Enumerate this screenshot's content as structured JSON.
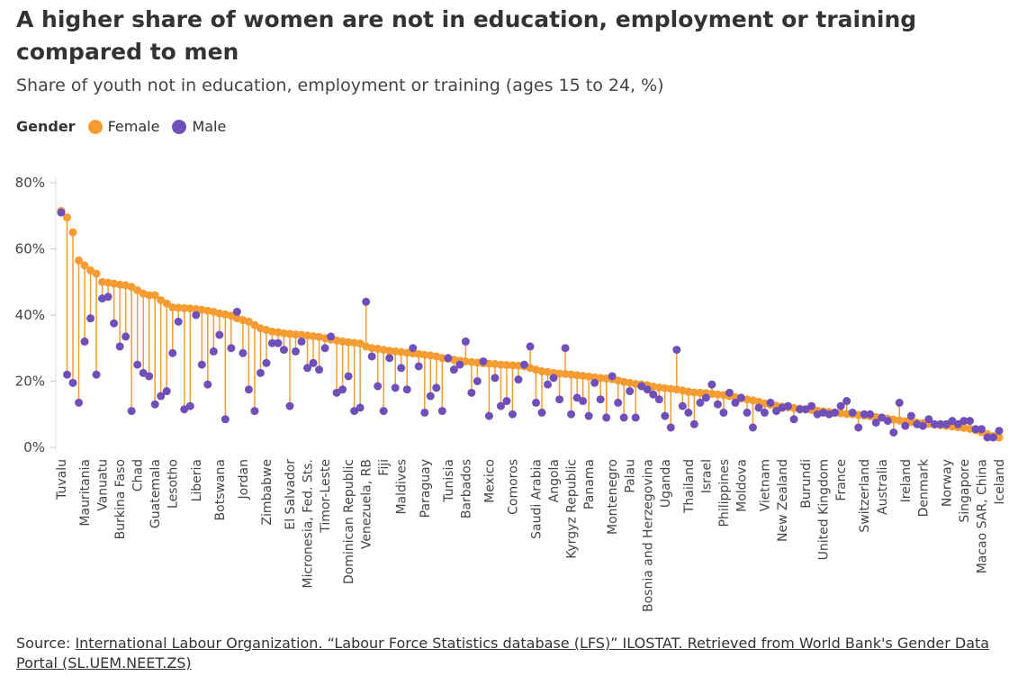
{
  "chart_data": {
    "type": "dumbbell",
    "title": "A higher share of women are not in education, employment or training compared to men",
    "subtitle": "Share of youth not in education, employment or training (ages 15 to 24, %)",
    "legend_title": "Gender",
    "source_label": "Source:",
    "source_text": "International Labour Organization. “Labour Force Statistics database (LFS)” ILOSTAT. Retrieved from World Bank's Gender Data Portal (SL.UEM.NEET.ZS)",
    "categories": [
      "Tuvalu",
      null,
      null,
      null,
      "Mauritania",
      null,
      null,
      "Vanuatu",
      null,
      null,
      "Burkina Faso",
      null,
      null,
      "Chad",
      null,
      null,
      "Guatemala",
      null,
      null,
      "Lesotho",
      null,
      null,
      null,
      "Liberia",
      null,
      null,
      null,
      "Botswana",
      null,
      null,
      null,
      "Jordan",
      null,
      null,
      null,
      "Zimbabwe",
      null,
      null,
      null,
      "El Salvador",
      null,
      null,
      "Micronesia, Fed. Sts.",
      null,
      null,
      "Timor-Leste",
      null,
      null,
      null,
      "Dominican Republic",
      null,
      null,
      "Venezuela, RB",
      null,
      null,
      "Fiji",
      null,
      null,
      "Maldives",
      null,
      null,
      null,
      "Paraguay",
      null,
      null,
      null,
      "Tunisia",
      null,
      null,
      "Barbados",
      null,
      null,
      null,
      "Mexico",
      null,
      null,
      null,
      "Comoros",
      null,
      null,
      null,
      "Saudi Arabia",
      null,
      null,
      "Angola",
      null,
      null,
      "Kyrgyz Republic",
      null,
      null,
      "Panama",
      null,
      null,
      null,
      "Montenegro",
      null,
      null,
      "Palau",
      null,
      null,
      "Bosnia and Herzegovina",
      null,
      null,
      "Uganda",
      null,
      null,
      null,
      "Thailand",
      null,
      null,
      "Israel",
      null,
      null,
      "Philippines",
      null,
      null,
      "Moldova",
      null,
      null,
      null,
      "Vietnam",
      null,
      null,
      "New Zealand",
      null,
      null,
      null,
      "Burundi",
      null,
      null,
      "United Kingdom",
      null,
      null,
      "France",
      null,
      null,
      null,
      "Switzerland",
      null,
      null,
      "Australia",
      null,
      null,
      null,
      "Ireland",
      null,
      null,
      "Denmark",
      null,
      null,
      null,
      "Norway",
      null,
      null,
      "Singapore",
      null,
      null,
      "Macao SAR, China",
      null,
      null,
      "Iceland"
    ],
    "series": [
      {
        "name": "Female",
        "color": "#f59d32",
        "values": [
          71.5,
          69.5,
          65,
          56.5,
          55,
          53.5,
          52.5,
          50,
          49.8,
          49.5,
          49.2,
          49,
          48.5,
          47.5,
          46.5,
          46,
          46,
          44.5,
          43.5,
          42.3,
          42.2,
          42.1,
          42,
          41.8,
          41.6,
          41.3,
          41,
          40.5,
          40.2,
          39.8,
          39,
          38.5,
          38,
          37,
          36,
          35.5,
          35,
          34.8,
          34.5,
          34.3,
          34.1,
          34,
          33.8,
          33.6,
          33.4,
          33,
          32.6,
          32.3,
          32,
          31.8,
          31.6,
          31.4,
          30.5,
          30,
          29.8,
          29.5,
          29.2,
          29,
          28.8,
          28.6,
          28.4,
          28.2,
          28,
          27.8,
          27.5,
          27,
          26.8,
          26.5,
          26.2,
          26,
          25.8,
          25.6,
          25.4,
          25.3,
          25.2,
          25,
          24.9,
          24.8,
          24.7,
          24.5,
          24,
          23.5,
          23,
          22.8,
          22.5,
          22.3,
          22.2,
          22,
          21.8,
          21.6,
          21.4,
          21.2,
          21,
          20.8,
          20.6,
          20.2,
          19.8,
          19.5,
          19.2,
          19,
          18.8,
          18.4,
          18.1,
          17.9,
          17.7,
          17.5,
          17.2,
          16.8,
          16.6,
          16.5,
          16.4,
          16.2,
          16,
          15.8,
          15.5,
          15.2,
          14.8,
          14.5,
          14.2,
          13.8,
          13.3,
          12.9,
          12.6,
          12.3,
          12.1,
          11.9,
          11.7,
          11.5,
          11.3,
          11.1,
          10.9,
          10.7,
          10.5,
          10.3,
          10.1,
          10,
          9.8,
          9.6,
          9.4,
          9.2,
          9,
          8.7,
          8.4,
          8.1,
          7.9,
          7.7,
          7.5,
          7.3,
          7.1,
          6.9,
          6.7,
          6.5,
          6.3,
          6.1,
          5.9,
          5.6,
          5.2,
          4.6,
          4,
          3.4,
          3
        ]
      },
      {
        "name": "Male",
        "color": "#7050b8",
        "values": [
          71,
          22,
          19.5,
          13.5,
          32,
          39,
          22,
          45,
          45.5,
          37.5,
          30.5,
          33.5,
          11,
          25,
          22.5,
          21.5,
          13,
          15.5,
          17,
          28.5,
          38,
          11.5,
          12.5,
          40,
          25,
          19,
          29,
          34,
          8.5,
          30,
          41,
          28.5,
          17.5,
          11,
          22.5,
          25.5,
          31.5,
          31.5,
          29.5,
          12.5,
          29,
          32,
          24,
          25.5,
          23.5,
          30,
          33.5,
          16.5,
          17.5,
          21.5,
          11,
          12,
          44,
          27.5,
          18.5,
          11,
          27,
          18,
          24,
          17.5,
          30,
          24.5,
          10.5,
          15.5,
          18,
          11,
          27,
          23.5,
          25,
          32,
          16.5,
          20,
          26,
          9.5,
          21,
          12.5,
          14,
          10,
          20.5,
          25,
          30.5,
          13.5,
          10.5,
          19,
          21,
          14.5,
          30,
          10,
          15,
          14,
          9.5,
          19.5,
          14.5,
          9,
          21.5,
          13.5,
          9,
          17,
          9,
          18.5,
          17.5,
          16,
          14.5,
          9.5,
          6,
          29.5,
          12.5,
          10.5,
          7,
          13.5,
          15,
          19,
          13,
          10.5,
          16.5,
          13.5,
          15,
          10.5,
          6,
          12,
          10.5,
          13.5,
          11,
          12,
          12.5,
          8.5,
          11.5,
          11.5,
          12.5,
          10,
          10.5,
          10,
          10.5,
          12.5,
          14,
          10.5,
          6,
          10,
          10,
          7.5,
          9,
          8,
          4.5,
          13.5,
          6.5,
          9.5,
          7,
          6.5,
          8.5,
          7,
          7,
          7,
          8,
          7,
          8,
          8,
          5.5,
          5.5,
          3,
          3,
          5
        ]
      }
    ],
    "ylim": [
      0,
      80
    ],
    "yticks": [
      {
        "value": 0,
        "label": "0%"
      },
      {
        "value": 20,
        "label": "20%"
      },
      {
        "value": 40,
        "label": "40%"
      },
      {
        "value": 60,
        "label": "60%"
      },
      {
        "value": 80,
        "label": "80%"
      }
    ],
    "grid": false
  }
}
